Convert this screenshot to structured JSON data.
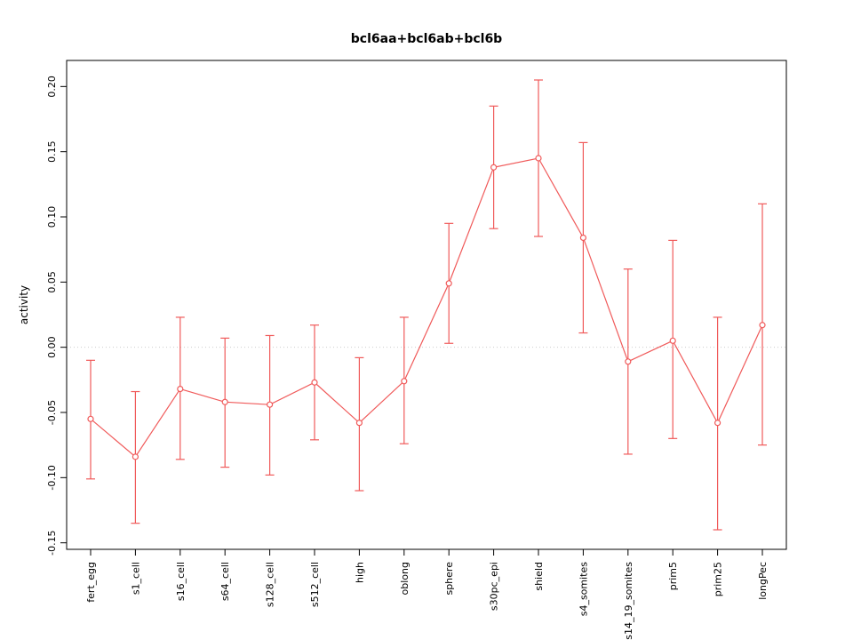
{
  "chart_data": {
    "type": "line",
    "title": "bcl6aa+bcl6ab+bcl6b",
    "ylabel": "activity",
    "xlabel": "",
    "categories": [
      "fert_egg",
      "s1_cell",
      "s16_cell",
      "s64_cell",
      "s128_cell",
      "s512_cell",
      "high",
      "oblong",
      "sphere",
      "s30pc_epi",
      "shield",
      "s4_somites",
      "s14_19_somites",
      "prim5",
      "prim25",
      "longPec"
    ],
    "values": [
      -0.055,
      -0.084,
      -0.032,
      -0.042,
      -0.044,
      -0.027,
      -0.058,
      -0.026,
      0.049,
      0.138,
      0.145,
      0.084,
      -0.011,
      0.005,
      -0.058,
      0.017
    ],
    "lower": [
      -0.101,
      -0.135,
      -0.086,
      -0.092,
      -0.098,
      -0.071,
      -0.11,
      -0.074,
      0.003,
      0.091,
      0.085,
      0.011,
      -0.082,
      -0.07,
      -0.14,
      -0.075
    ],
    "upper": [
      -0.01,
      -0.034,
      0.023,
      0.007,
      0.009,
      0.017,
      -0.008,
      0.023,
      0.095,
      0.185,
      0.205,
      0.157,
      0.06,
      0.082,
      0.023,
      0.11
    ],
    "yticks": [
      -0.15,
      -0.1,
      -0.05,
      0.0,
      0.05,
      0.1,
      0.15,
      0.2
    ],
    "ylim": [
      -0.155,
      0.22
    ],
    "zero_gridline": true,
    "grid": false,
    "legend": "none",
    "colors": {
      "line": "#f05a5a",
      "marker_fill": "#ffffff",
      "axis": "#000000",
      "grid": "#cccccc",
      "background": "#ffffff",
      "text": "#000000"
    }
  }
}
